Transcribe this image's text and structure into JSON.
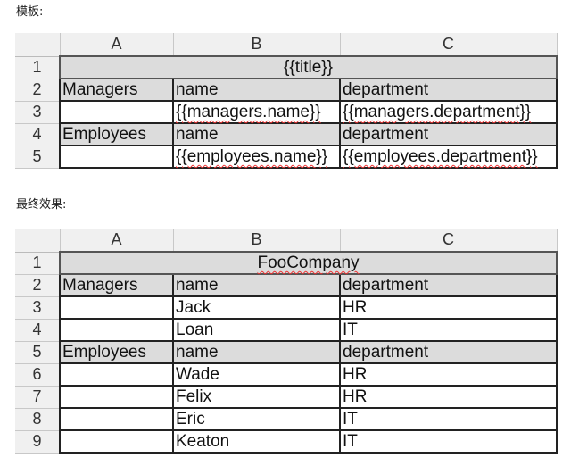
{
  "template_caption": "模板:",
  "result_caption": "最终效果:",
  "columns": [
    "A",
    "B",
    "C"
  ],
  "template": {
    "title": "{{title}}",
    "rows": [
      {
        "num": "1",
        "type": "title"
      },
      {
        "num": "2",
        "type": "hdr",
        "a": "Managers",
        "b": "name",
        "c": "department"
      },
      {
        "num": "3",
        "type": "data",
        "a": "",
        "b": "{{managers.name}}",
        "c": "{{managers.department}}",
        "spell": true
      },
      {
        "num": "4",
        "type": "hdr",
        "a": "Employees",
        "b": "name",
        "c": "department"
      },
      {
        "num": "5",
        "type": "data",
        "a": "",
        "b": "{{employees.name}}",
        "c": "{{employees.department}}",
        "spell": true
      }
    ]
  },
  "result": {
    "title": "FooCompany",
    "rows": [
      {
        "num": "1",
        "type": "title"
      },
      {
        "num": "2",
        "type": "hdr",
        "a": "Managers",
        "b": "name",
        "c": "department"
      },
      {
        "num": "3",
        "type": "data",
        "a": "",
        "b": "Jack",
        "c": "HR"
      },
      {
        "num": "4",
        "type": "data",
        "a": "",
        "b": "Loan",
        "c": "IT"
      },
      {
        "num": "5",
        "type": "hdr",
        "a": "Employees",
        "b": "name",
        "c": "department"
      },
      {
        "num": "6",
        "type": "data",
        "a": "",
        "b": "Wade",
        "c": "HR"
      },
      {
        "num": "7",
        "type": "data",
        "a": "",
        "b": "Felix",
        "c": "HR"
      },
      {
        "num": "8",
        "type": "data",
        "a": "",
        "b": "Eric",
        "c": "IT"
      },
      {
        "num": "9",
        "type": "data",
        "a": "",
        "b": "Keaton",
        "c": "IT"
      }
    ]
  }
}
